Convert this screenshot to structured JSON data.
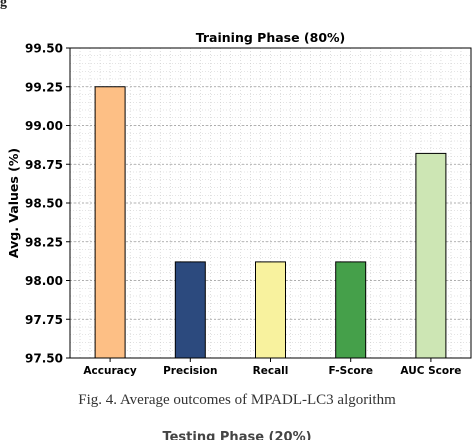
{
  "page": {
    "top_heading_fragment": "g",
    "caption": "Fig. 4.   Average outcomes of MPADL-LC3 algorithm",
    "next_heading_fragment": "Testing Phase (20%)"
  },
  "chart_data": {
    "type": "bar",
    "title": "Training Phase (80%)",
    "xlabel": "",
    "ylabel": "Avg. Values (%)",
    "categories": [
      "Accuracy",
      "Precision",
      "Recall",
      "F-Score",
      "AUC Score"
    ],
    "values": [
      99.25,
      98.12,
      98.12,
      98.12,
      98.82
    ],
    "colors": [
      "#fdbf85",
      "#2c4a7e",
      "#f8f29e",
      "#45a04a",
      "#cde6b4"
    ],
    "ylim": [
      97.5,
      99.5
    ],
    "yticks": [
      "97.50",
      "97.75",
      "98.00",
      "98.25",
      "98.50",
      "98.75",
      "99.00",
      "99.25",
      "99.50"
    ],
    "grid": true,
    "legend": "none"
  }
}
